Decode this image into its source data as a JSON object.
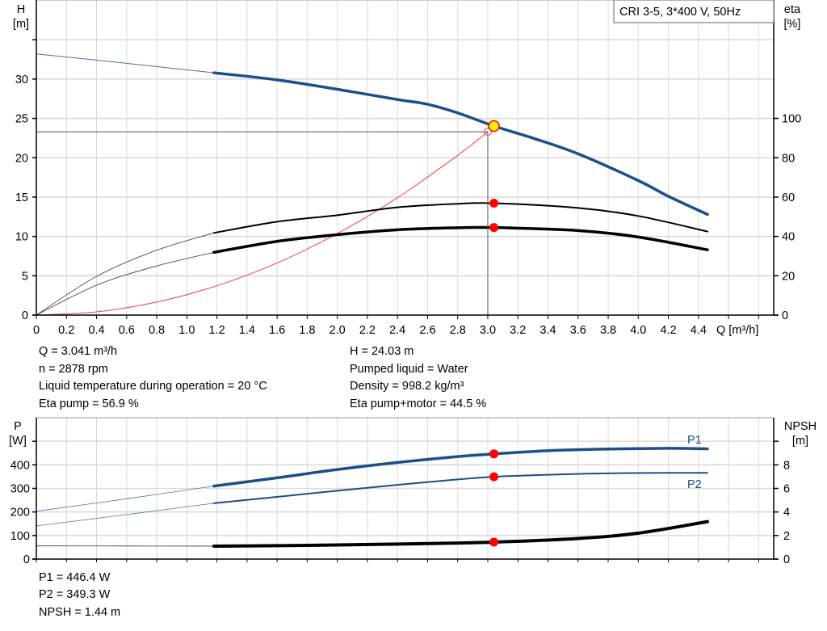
{
  "title_box": "CRI 3-5, 3*400 V, 50Hz",
  "colors": {
    "head": "#1a4f8a",
    "power": "#1a4f8a",
    "eta": "#000000",
    "npsh": "#000000",
    "system": "#ff3b3b",
    "marker": "#ff0000",
    "operating_point": "#ffee00",
    "grid": "#d9d9d9"
  },
  "chart_data": [
    {
      "type": "line",
      "xlabel": "Q [m³/h]",
      "ylabel_left": [
        "H",
        "[m]"
      ],
      "ylabel_right": [
        "eta",
        "[%]"
      ],
      "xlim": [
        0,
        4.9
      ],
      "ylim_left": [
        0,
        40
      ],
      "ylim_right": [
        0,
        160
      ],
      "x_ticks": [
        "0",
        "0.2",
        "0.4",
        "0.6",
        "0.8",
        "1.0",
        "1.2",
        "1.4",
        "1.6",
        "1.8",
        "2.0",
        "2.2",
        "2.4",
        "2.6",
        "2.8",
        "3.0",
        "3.2",
        "3.4",
        "3.6",
        "3.8",
        "4.0",
        "4.2",
        "4.4"
      ],
      "y_ticks_left": [
        "0",
        "5",
        "10",
        "15",
        "20",
        "25",
        "30"
      ],
      "y_ticks_right": [
        "0",
        "20",
        "40",
        "60",
        "80",
        "100"
      ],
      "grid": true,
      "series": [
        {
          "key": "H",
          "axis": "left",
          "thin_until": 1.18,
          "x": [
            0,
            0.6,
            1.18,
            1.6,
            2.0,
            2.4,
            2.6,
            2.8,
            3.041,
            3.3,
            3.6,
            4.0,
            4.2,
            4.46
          ],
          "y": [
            33.2,
            32.0,
            30.8,
            29.9,
            28.7,
            27.4,
            26.8,
            25.7,
            24.03,
            22.5,
            20.5,
            17.1,
            15.1,
            12.8
          ]
        },
        {
          "key": "eta_pump",
          "axis": "right",
          "thin_until": 1.18,
          "x": [
            0,
            0.4,
            0.8,
            1.18,
            1.6,
            2.0,
            2.4,
            2.8,
            3.041,
            3.6,
            4.0,
            4.46
          ],
          "y": [
            0,
            19.7,
            33,
            41.8,
            47.5,
            50.8,
            54.8,
            56.6,
            56.9,
            54.5,
            50.4,
            42.5
          ]
        },
        {
          "key": "eta_pump_motor",
          "axis": "right",
          "thin_until": 1.18,
          "x": [
            0,
            0.4,
            0.8,
            1.18,
            1.6,
            2.0,
            2.4,
            2.8,
            3.041,
            3.6,
            4.0,
            4.46
          ],
          "y": [
            0,
            15.2,
            25,
            31.9,
            37.5,
            40.9,
            43.4,
            44.4,
            44.5,
            43,
            39.7,
            33.2
          ]
        },
        {
          "key": "system",
          "axis": "left",
          "x": [
            0,
            0.4,
            0.8,
            1.2,
            1.6,
            2.0,
            2.4,
            2.8,
            3.0
          ],
          "y": [
            0,
            0.41,
            1.66,
            3.73,
            6.63,
            10.36,
            14.92,
            20.3,
            23.3
          ]
        }
      ],
      "duty_point": {
        "Q": 3.0,
        "H": 23.3
      },
      "operating_point": {
        "Q": 3.041,
        "H": 24.03,
        "eta_pump": 56.9,
        "eta_pump_motor": 44.5
      }
    },
    {
      "type": "line",
      "ylabel_left": [
        "P",
        "[W]"
      ],
      "ylabel_right": [
        "NPSH",
        "[m]"
      ],
      "xlim": [
        0,
        4.9
      ],
      "ylim_left": [
        0,
        600
      ],
      "ylim_right": [
        0,
        12
      ],
      "y_ticks_left": [
        "0",
        "100",
        "200",
        "300",
        "400"
      ],
      "y_ticks_right": [
        "0",
        "2",
        "4",
        "6",
        "8"
      ],
      "grid": true,
      "series": [
        {
          "key": "P1",
          "name": "P1",
          "axis": "left",
          "thin_until": 1.18,
          "x": [
            0,
            0.6,
            1.18,
            1.6,
            2.0,
            2.4,
            2.8,
            3.041,
            3.4,
            3.8,
            4.2,
            4.46
          ],
          "y": [
            203,
            256,
            310,
            345,
            380,
            410,
            435,
            446.4,
            460,
            467,
            470,
            468
          ]
        },
        {
          "key": "P2",
          "name": "P2",
          "axis": "left",
          "thin_until": 1.18,
          "x": [
            0,
            0.6,
            1.18,
            1.6,
            2.0,
            2.4,
            2.8,
            3.041,
            3.4,
            3.8,
            4.2,
            4.46
          ],
          "y": [
            141,
            189,
            237,
            264,
            290,
            315,
            338,
            349.3,
            358,
            364,
            366,
            366
          ]
        },
        {
          "key": "NPSH",
          "axis": "right",
          "thin_until": 1.18,
          "x": [
            0,
            0.6,
            1.18,
            1.6,
            2.0,
            2.6,
            3.041,
            3.6,
            4.0,
            4.46
          ],
          "y": [
            1.12,
            1.11,
            1.1,
            1.14,
            1.2,
            1.32,
            1.44,
            1.75,
            2.2,
            3.18
          ]
        }
      ],
      "operating_point": {
        "Q": 3.041,
        "P1": 446.4,
        "P2": 349.3,
        "NPSH": 1.44
      }
    }
  ],
  "info_top": {
    "left": [
      "Q = 3.041 m³/h",
      "n = 2878 rpm",
      "Liquid temperature during operation = 20 °C",
      "Eta pump = 56.9 %"
    ],
    "right": [
      "H = 24.03 m",
      "Pumped liquid = Water",
      "Density = 998.2 kg/m³",
      "Eta pump+motor = 44.5 %"
    ]
  },
  "info_bottom": [
    "P1 = 446.4 W",
    "P2 = 349.3 W",
    "NPSH = 1.44 m"
  ]
}
